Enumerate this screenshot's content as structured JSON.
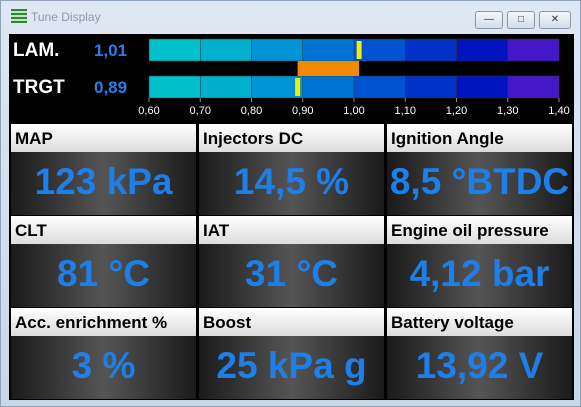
{
  "window": {
    "title": "Tune Display"
  },
  "lambda": {
    "rows": [
      {
        "label": "LAM.",
        "value": 1.01,
        "value_label": "1,01"
      },
      {
        "label": "TRGT",
        "value": 0.89,
        "value_label": "0,89"
      }
    ],
    "range": [
      0.6,
      1.4
    ],
    "ticks": [
      {
        "value": 0.6,
        "label": "0,60"
      },
      {
        "value": 0.7,
        "label": "0,70"
      },
      {
        "value": 0.8,
        "label": "0,80"
      },
      {
        "value": 0.9,
        "label": "0,90"
      },
      {
        "value": 1.0,
        "label": "1,00"
      },
      {
        "value": 1.1,
        "label": "1,10"
      },
      {
        "value": 1.2,
        "label": "1,20"
      },
      {
        "value": 1.3,
        "label": "1,30"
      },
      {
        "value": 1.4,
        "label": "1,40"
      }
    ]
  },
  "gauges": [
    {
      "label": "MAP",
      "value": "123 kPa"
    },
    {
      "label": "Injectors DC",
      "value": "14,5 %"
    },
    {
      "label": "Ignition Angle",
      "value": "8,5 °BTDC"
    },
    {
      "label": "CLT",
      "value": "81 °C"
    },
    {
      "label": "IAT",
      "value": "31 °C"
    },
    {
      "label": "Engine oil pressure",
      "value": "4,12 bar"
    },
    {
      "label": "Acc. enrichment %",
      "value": "3 %"
    },
    {
      "label": "Boost",
      "value": "25 kPa g"
    },
    {
      "label": "Battery voltage",
      "value": "13,92 V"
    }
  ]
}
